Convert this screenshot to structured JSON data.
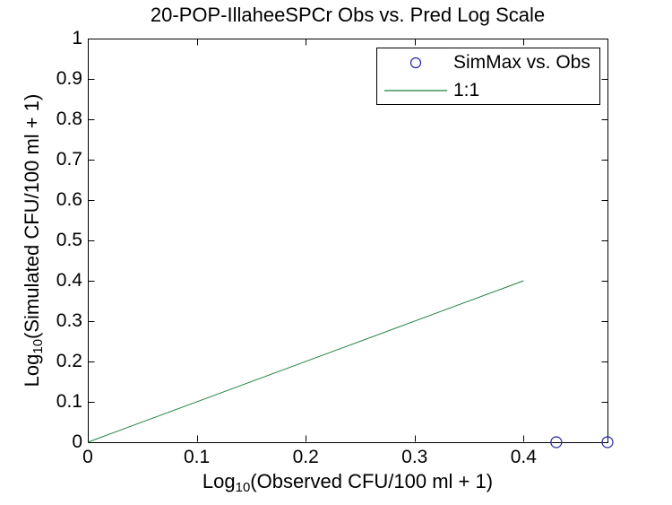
{
  "chart_data": {
    "type": "scatter",
    "title": "20-POP-IllaheeSPCr Obs vs. Pred Log Scale",
    "xlabel": "Log10(Observed CFU/100 ml + 1)",
    "ylabel": "Log10(Simulated CFU/100 ml + 1)",
    "xlim": [
      0,
      0.477
    ],
    "ylim": [
      0,
      1
    ],
    "xticks": [
      0,
      0.1,
      0.2,
      0.3,
      0.4
    ],
    "xtick_labels": [
      "0",
      "0.1",
      "0.2",
      "0.3",
      "0.4"
    ],
    "yticks": [
      0,
      0.1,
      0.2,
      0.3,
      0.4,
      0.5,
      0.6,
      0.7,
      0.8,
      0.9,
      1
    ],
    "ytick_labels": [
      "0",
      "0.1",
      "0.2",
      "0.3",
      "0.4",
      "0.5",
      "0.6",
      "0.7",
      "0.8",
      "0.9",
      "1"
    ],
    "grid": false,
    "legend_position": "top-right",
    "series": [
      {
        "name": "SimMax vs. Obs",
        "kind": "scatter",
        "marker": "circle",
        "color": "#2424a0",
        "points": [
          [
            0.43,
            0
          ],
          [
            0.477,
            0
          ]
        ]
      },
      {
        "name": "1:1",
        "kind": "line",
        "color": "#1f7f3f",
        "points": [
          [
            0,
            0
          ],
          [
            0.4,
            0.4
          ]
        ]
      }
    ]
  },
  "axes": {
    "x": {
      "prefix": "Log",
      "sub": "10",
      "rest": "(Observed CFU/100 ml + 1)"
    },
    "y": {
      "prefix": "Log",
      "sub": "10",
      "rest": "(Simulated CFU/100 ml + 1)"
    }
  },
  "colors": {
    "axis": "#000000",
    "background": "#ffffff",
    "marker_blue": "#2424a0",
    "line_green": "#1f7f3f"
  }
}
